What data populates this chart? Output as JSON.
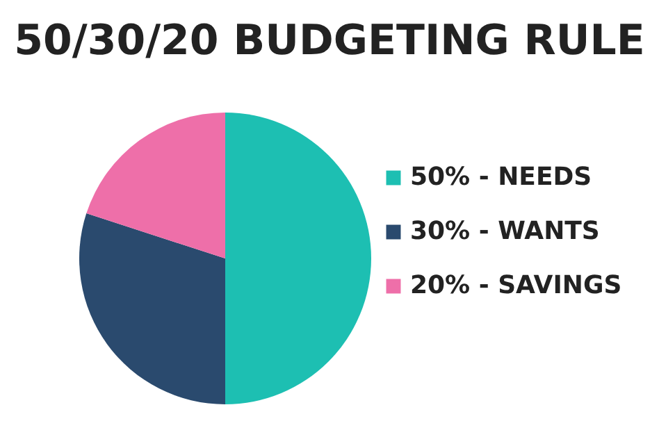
{
  "chart_data": {
    "type": "pie",
    "title": "50/30/20 BUDGETING RULE",
    "categories": [
      "50% - NEEDS",
      "30% - WANTS",
      "20% - SAVINGS"
    ],
    "values": [
      50,
      30,
      20
    ],
    "colors": [
      "#1dbfb2",
      "#2a4a6e",
      "#ee6fa9"
    ],
    "legend": "right"
  }
}
